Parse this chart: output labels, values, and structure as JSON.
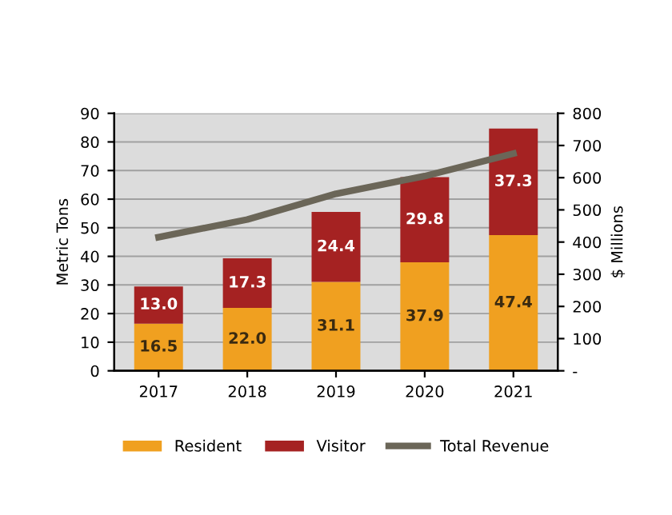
{
  "chart_data": {
    "type": "bar",
    "categories": [
      "2017",
      "2018",
      "2019",
      "2020",
      "2021"
    ],
    "ylabel": "Metric Tons",
    "y2label": "$ Millions",
    "stacked": true,
    "grid": "y",
    "legend": "bottom",
    "ylim": [
      0,
      90
    ],
    "yticks": [
      0,
      10,
      20,
      30,
      40,
      50,
      60,
      70,
      80,
      90
    ],
    "y2lim": [
      0,
      800
    ],
    "y2ticks": [
      {
        "value": 0,
        "label": "-"
      },
      100,
      200,
      300,
      400,
      500,
      600,
      700,
      800
    ],
    "series": [
      {
        "name": "Resident",
        "color": "#f0a020",
        "values": [
          16.5,
          22.0,
          31.1,
          37.9,
          47.4
        ],
        "value_labels": [
          "16.5",
          "22.0",
          "31.1",
          "37.9",
          "47.4"
        ]
      },
      {
        "name": "Visitor",
        "color": "#a52222",
        "values": [
          13.0,
          17.3,
          24.4,
          29.8,
          37.3
        ],
        "value_labels": [
          "13.0",
          "17.3",
          "24.4",
          "29.8",
          "37.3"
        ]
      },
      {
        "name": "Total Revenue",
        "type": "line",
        "axis": "y2",
        "color": "#6b6658",
        "values": [
          415,
          470,
          550,
          605,
          675
        ]
      }
    ]
  }
}
